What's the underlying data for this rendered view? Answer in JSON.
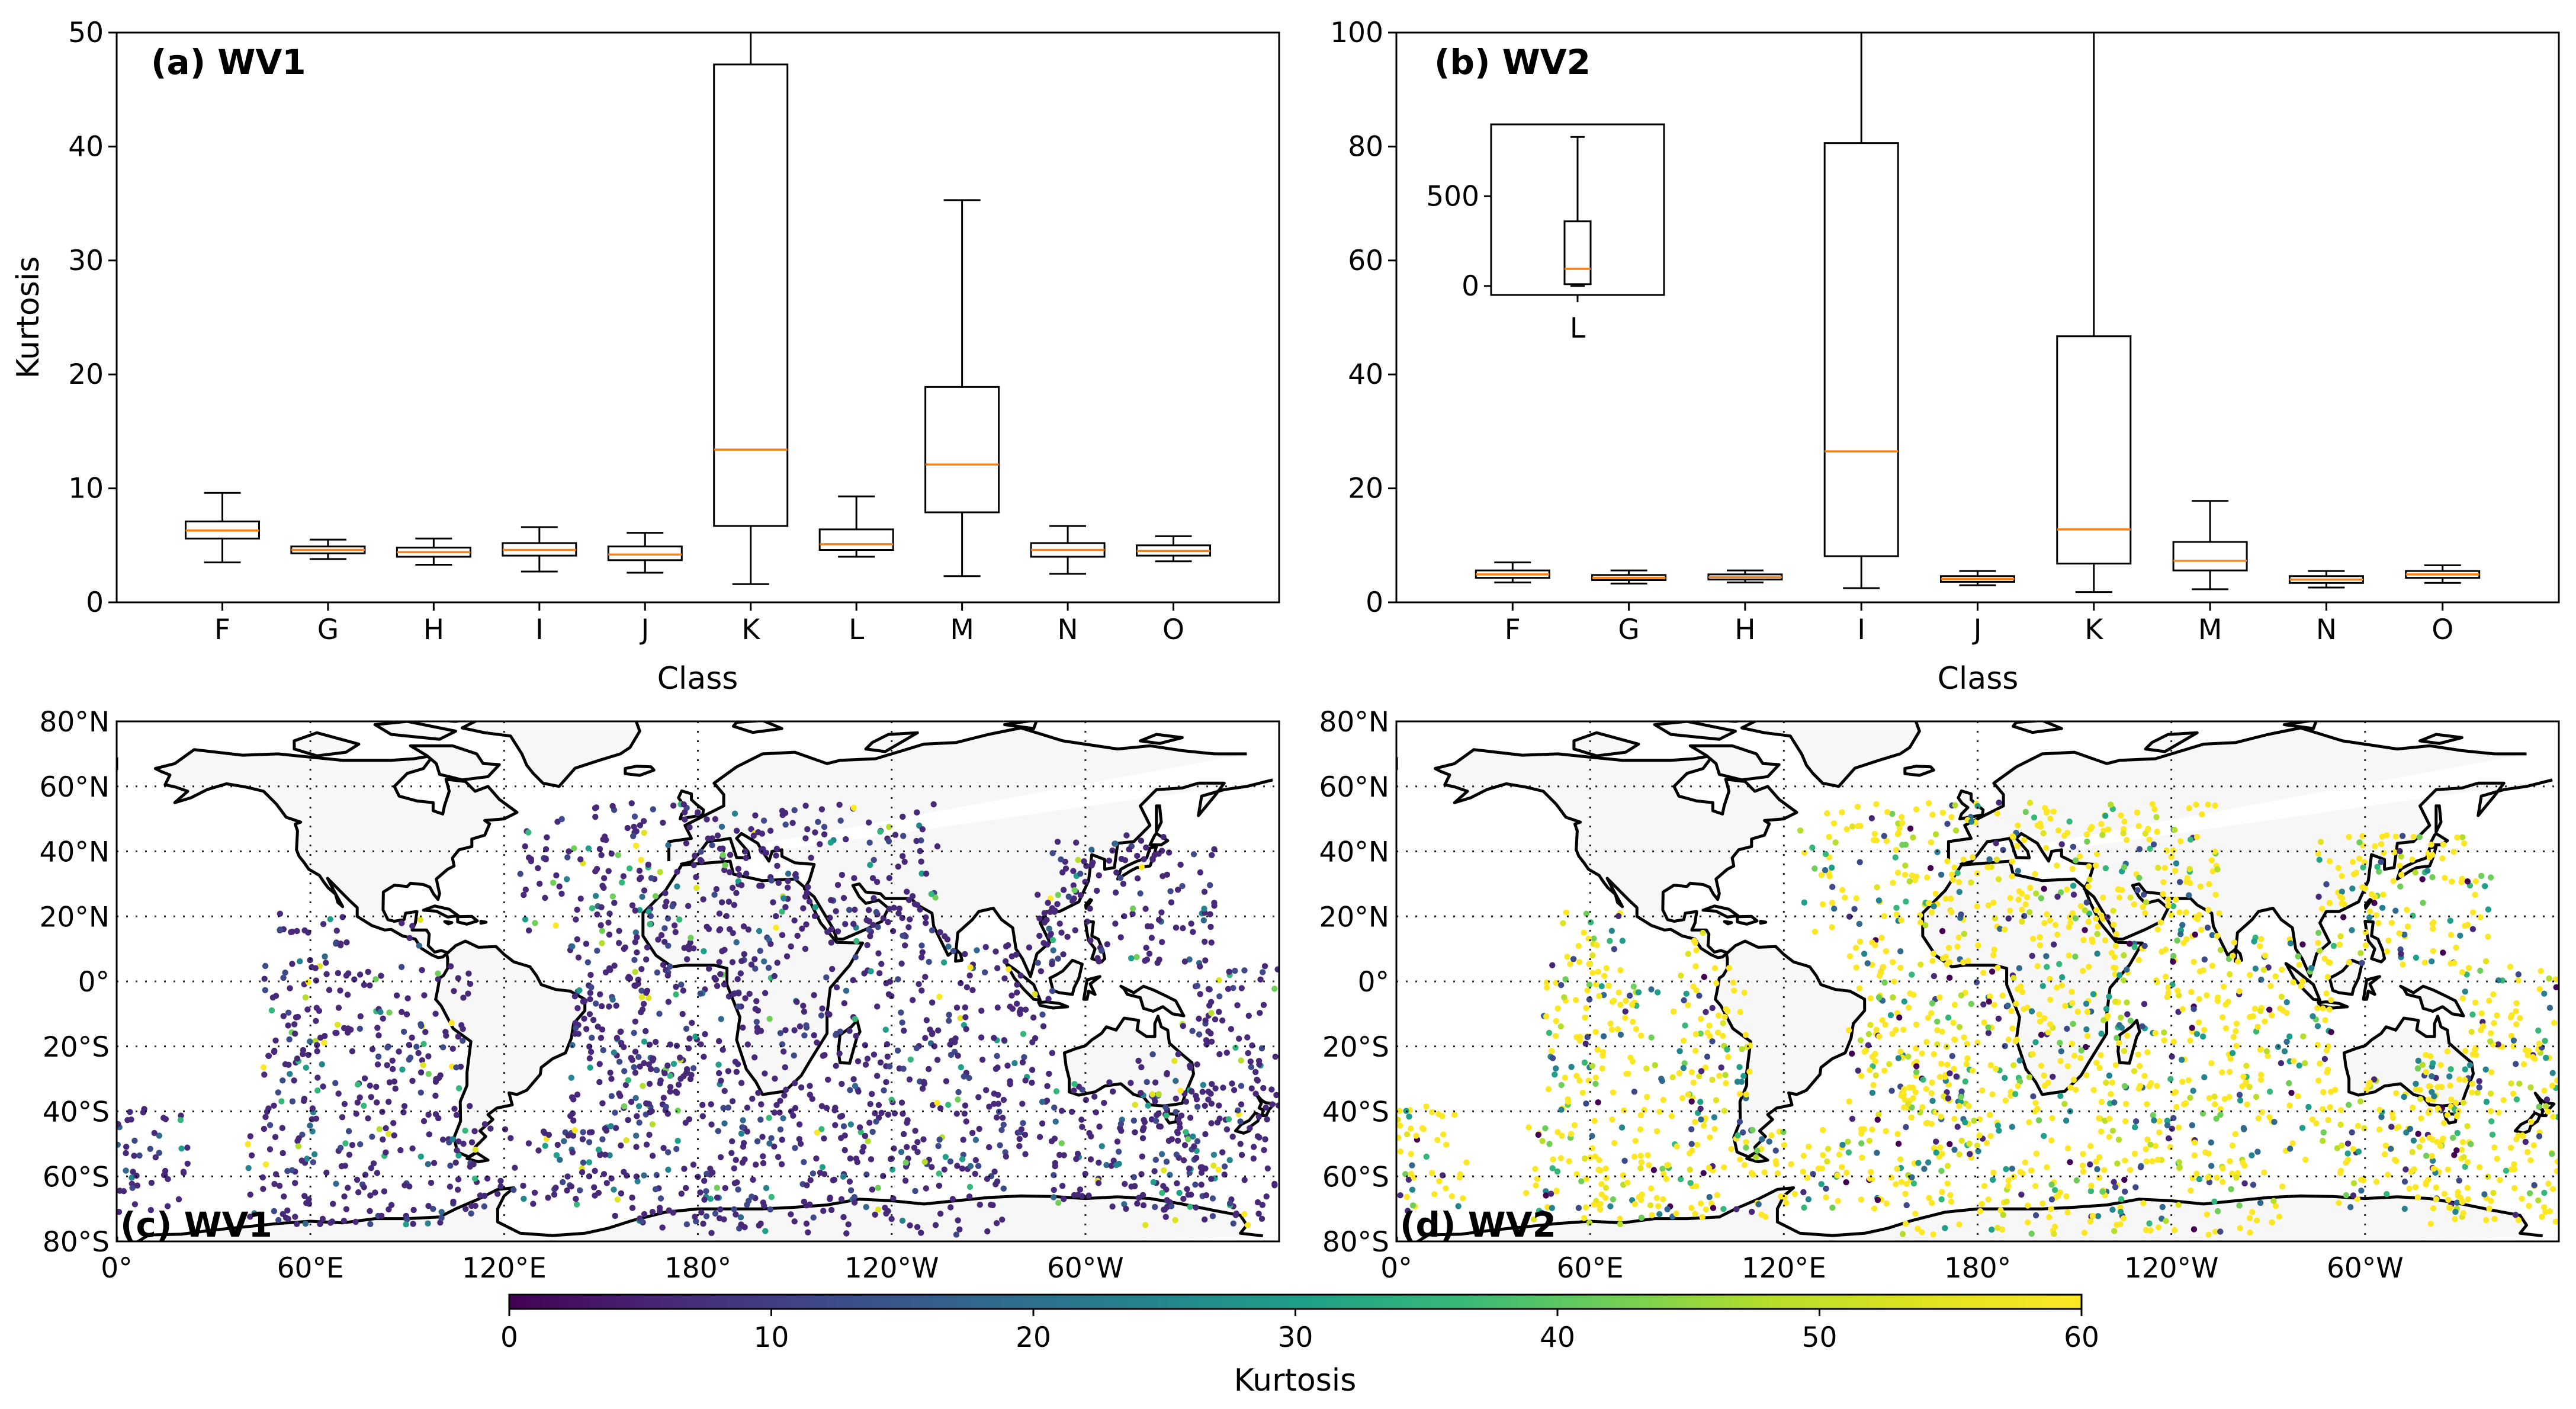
{
  "figure": {
    "colorbar": {
      "label": "Kurtosis",
      "min": 0,
      "max": 60,
      "ticks": [
        "0",
        "10",
        "20",
        "30",
        "40",
        "50",
        "60"
      ],
      "colormap": "viridis"
    }
  },
  "chart_data": [
    {
      "type": "box",
      "title": "(a) WV1",
      "xlabel": "Class",
      "ylabel": "Kurtosis",
      "ylim": [
        0,
        50
      ],
      "yticks": [
        "0",
        "10",
        "20",
        "30",
        "40",
        "50"
      ],
      "categories": [
        "F",
        "G",
        "H",
        "I",
        "J",
        "K",
        "L",
        "M",
        "N",
        "O"
      ],
      "boxes": [
        {
          "category": "F",
          "whisker_low": 3.5,
          "q1": 5.6,
          "median": 6.3,
          "q3": 7.1,
          "whisker_high": 9.6
        },
        {
          "category": "G",
          "whisker_low": 3.8,
          "q1": 4.3,
          "median": 4.6,
          "q3": 4.9,
          "whisker_high": 5.5
        },
        {
          "category": "H",
          "whisker_low": 3.3,
          "q1": 4.0,
          "median": 4.4,
          "q3": 4.8,
          "whisker_high": 5.6
        },
        {
          "category": "I",
          "whisker_low": 2.7,
          "q1": 4.1,
          "median": 4.6,
          "q3": 5.2,
          "whisker_high": 6.6
        },
        {
          "category": "J",
          "whisker_low": 2.6,
          "q1": 3.7,
          "median": 4.2,
          "q3": 4.9,
          "whisker_high": 6.1
        },
        {
          "category": "K",
          "whisker_low": 1.6,
          "q1": 6.7,
          "median": 13.4,
          "q3": 47.2,
          "whisker_high": 50
        },
        {
          "category": "L",
          "whisker_low": 4.0,
          "q1": 4.6,
          "median": 5.1,
          "q3": 6.4,
          "whisker_high": 9.3
        },
        {
          "category": "M",
          "whisker_low": 2.3,
          "q1": 7.9,
          "median": 12.1,
          "q3": 18.9,
          "whisker_high": 35.3
        },
        {
          "category": "N",
          "whisker_low": 2.5,
          "q1": 4.0,
          "median": 4.6,
          "q3": 5.2,
          "whisker_high": 6.7
        },
        {
          "category": "O",
          "whisker_low": 3.6,
          "q1": 4.1,
          "median": 4.5,
          "q3": 5.0,
          "whisker_high": 5.8
        }
      ]
    },
    {
      "type": "box",
      "title": "(b) WV2",
      "xlabel": "Class",
      "ylabel": "",
      "ylim": [
        0,
        100
      ],
      "yticks": [
        "0",
        "20",
        "40",
        "60",
        "80",
        "100"
      ],
      "categories": [
        "F",
        "G",
        "H",
        "I",
        "J",
        "K",
        "M",
        "N",
        "O"
      ],
      "boxes": [
        {
          "category": "F",
          "whisker_low": 3.5,
          "q1": 4.3,
          "median": 4.9,
          "q3": 5.6,
          "whisker_high": 7.0
        },
        {
          "category": "G",
          "whisker_low": 3.3,
          "q1": 3.9,
          "median": 4.3,
          "q3": 4.8,
          "whisker_high": 5.6
        },
        {
          "category": "H",
          "whisker_low": 3.5,
          "q1": 4.0,
          "median": 4.4,
          "q3": 4.9,
          "whisker_high": 5.6
        },
        {
          "category": "I",
          "whisker_low": 2.5,
          "q1": 8.1,
          "median": 26.5,
          "q3": 80.6,
          "whisker_high": 100
        },
        {
          "category": "J",
          "whisker_low": 3.0,
          "q1": 3.6,
          "median": 4.1,
          "q3": 4.6,
          "whisker_high": 5.5
        },
        {
          "category": "K",
          "whisker_low": 1.8,
          "q1": 6.8,
          "median": 12.8,
          "q3": 46.7,
          "whisker_high": 100
        },
        {
          "category": "M",
          "whisker_low": 2.3,
          "q1": 5.6,
          "median": 7.3,
          "q3": 10.6,
          "whisker_high": 17.8
        },
        {
          "category": "N",
          "whisker_low": 2.6,
          "q1": 3.4,
          "median": 4.0,
          "q3": 4.6,
          "whisker_high": 5.5
        },
        {
          "category": "O",
          "whisker_low": 3.4,
          "q1": 4.3,
          "median": 4.9,
          "q3": 5.5,
          "whisker_high": 6.5
        }
      ],
      "inset": {
        "category": "L",
        "ylim": [
          -50,
          900
        ],
        "yticks": [
          "0",
          "500"
        ],
        "box": {
          "whisker_low": 0,
          "q1": 10,
          "median": 95,
          "q3": 360,
          "whisker_high": 830
        }
      }
    },
    {
      "type": "scatter-map",
      "title": "(c) WV1",
      "projection": "PlateCarree, central_longitude 180",
      "lon_range": [
        0,
        360
      ],
      "lat_range": [
        -80,
        80
      ],
      "xticks": [
        "0°",
        "60°E",
        "120°E",
        "180°",
        "120°W",
        "60°W"
      ],
      "yticks": [
        "80°S",
        "60°S",
        "40°S",
        "20°S",
        "0°",
        "20°N",
        "40°N",
        "60°N",
        "80°N"
      ],
      "color_variable": "Kurtosis",
      "typical_value": 6
    },
    {
      "type": "scatter-map",
      "title": "(d) WV2",
      "projection": "PlateCarree, central_longitude 180",
      "lon_range": [
        0,
        360
      ],
      "lat_range": [
        -80,
        80
      ],
      "xticks": [
        "0°",
        "60°E",
        "120°E",
        "180°",
        "120°W",
        "60°W"
      ],
      "yticks": [
        "80°S",
        "60°S",
        "40°S",
        "20°S",
        "0°",
        "20°N",
        "40°N",
        "60°N",
        "80°N"
      ],
      "color_variable": "Kurtosis",
      "typical_value": 55
    }
  ]
}
